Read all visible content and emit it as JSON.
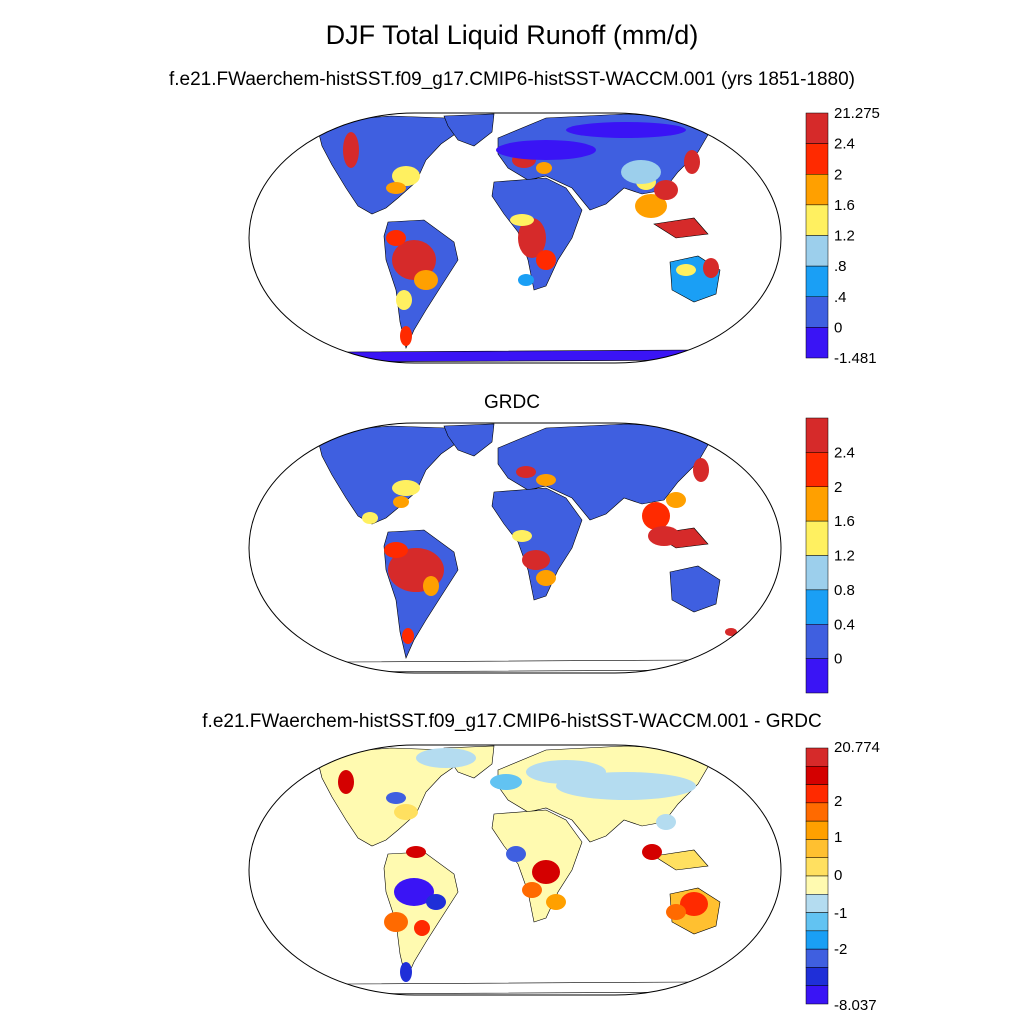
{
  "title": "DJF Total Liquid Runoff (mm/d)",
  "panels": [
    {
      "id": "model",
      "title": "f.e21.FWaerchem-histSST.f09_g17.CMIP6-histSST-WACCM.001 (yrs 1851-1880)",
      "colorbar": {
        "colors": [
          "#3a14f5",
          "#3f5fe0",
          "#1a9ff5",
          "#9ccfec",
          "#fff060",
          "#ffa000",
          "#ff2a00",
          "#d62a2a"
        ],
        "labels": [
          "21.275",
          "2.4",
          "2",
          "1.6",
          "1.2",
          ".8",
          ".4",
          "0",
          "-1.481"
        ]
      }
    },
    {
      "id": "obs",
      "title": "GRDC",
      "colorbar": {
        "colors": [
          "#3a14f5",
          "#3f5fe0",
          "#1a9ff5",
          "#9ccfec",
          "#fff060",
          "#ffa000",
          "#ff2a00",
          "#d62a2a"
        ],
        "labels": [
          "2.4",
          "2",
          "1.6",
          "1.2",
          "0.8",
          "0.4",
          "0"
        ]
      }
    },
    {
      "id": "diff",
      "title": "f.e21.FWaerchem-histSST.f09_g17.CMIP6-histSST-WACCM.001 - GRDC",
      "colorbar": {
        "colors": [
          "#3a14f5",
          "#1f2fd8",
          "#3f5fe0",
          "#1a9ff5",
          "#62c3f2",
          "#b4dcf0",
          "#fffab0",
          "#ffe060",
          "#ffc030",
          "#ffa000",
          "#ff6a00",
          "#ff2a00",
          "#d40000",
          "#d62a2a"
        ],
        "labels": [
          "20.774",
          "2",
          "1",
          "0",
          "-1",
          "-2",
          "-8.037"
        ]
      }
    }
  ]
}
